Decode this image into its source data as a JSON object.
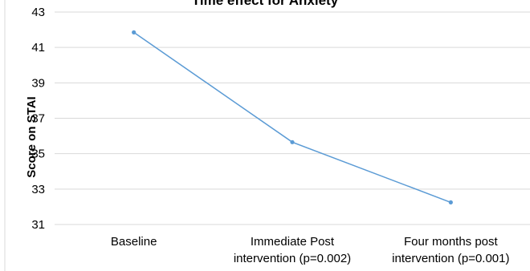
{
  "chart_data": {
    "type": "line",
    "title": "Time effect for Anxiety",
    "xlabel": "",
    "ylabel": "Score on STAI",
    "ylim": [
      31,
      43
    ],
    "yticks": [
      31,
      33,
      35,
      37,
      39,
      41,
      43
    ],
    "grid": true,
    "categories": [
      [
        "Baseline"
      ],
      [
        "Immediate Post",
        "intervention (p=0.002)"
      ],
      [
        "Four months post",
        "intervention (p=0.001)"
      ]
    ],
    "series": [
      {
        "values": [
          41.85,
          35.65,
          32.25
        ],
        "color": "#5b9bd5"
      }
    ]
  }
}
